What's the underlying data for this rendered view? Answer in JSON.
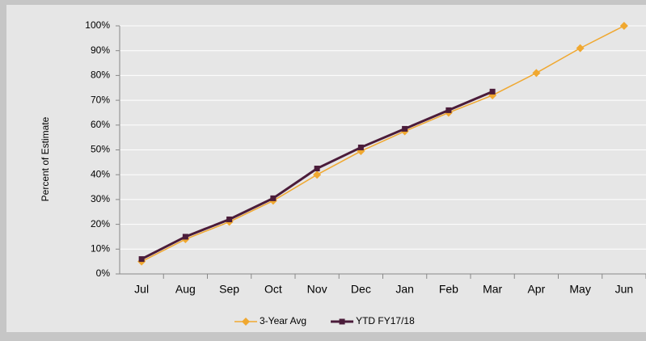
{
  "chart_data": {
    "type": "line",
    "y_label": "Percent of Estimate",
    "categories": [
      "Jul",
      "Aug",
      "Sep",
      "Oct",
      "Nov",
      "Dec",
      "Jan",
      "Feb",
      "Mar",
      "Apr",
      "May",
      "Jun"
    ],
    "series": [
      {
        "name": "3-Year Avg",
        "color": "#f0a830",
        "marker": "diamond",
        "values": [
          5,
          14,
          21,
          29.5,
          40,
          49.5,
          57.5,
          65,
          72,
          81,
          91,
          100
        ]
      },
      {
        "name": "YTD FY17/18",
        "color": "#4b1c3a",
        "marker": "square",
        "values": [
          6,
          15,
          22,
          30.5,
          42.5,
          51,
          58.5,
          66,
          73.5,
          null,
          null,
          null
        ]
      }
    ],
    "ylim": [
      0,
      100
    ],
    "yticks": [
      {
        "value": 0,
        "label": "0%"
      },
      {
        "value": 10,
        "label": "10%"
      },
      {
        "value": 20,
        "label": "20%"
      },
      {
        "value": 30,
        "label": "30%"
      },
      {
        "value": 40,
        "label": "40%"
      },
      {
        "value": 50,
        "label": "50%"
      },
      {
        "value": 60,
        "label": "60%"
      },
      {
        "value": 70,
        "label": "70%"
      },
      {
        "value": 80,
        "label": "80%"
      },
      {
        "value": 90,
        "label": "90%"
      },
      {
        "value": 100,
        "label": "100%"
      }
    ],
    "grid": true,
    "legend": "bottom"
  }
}
